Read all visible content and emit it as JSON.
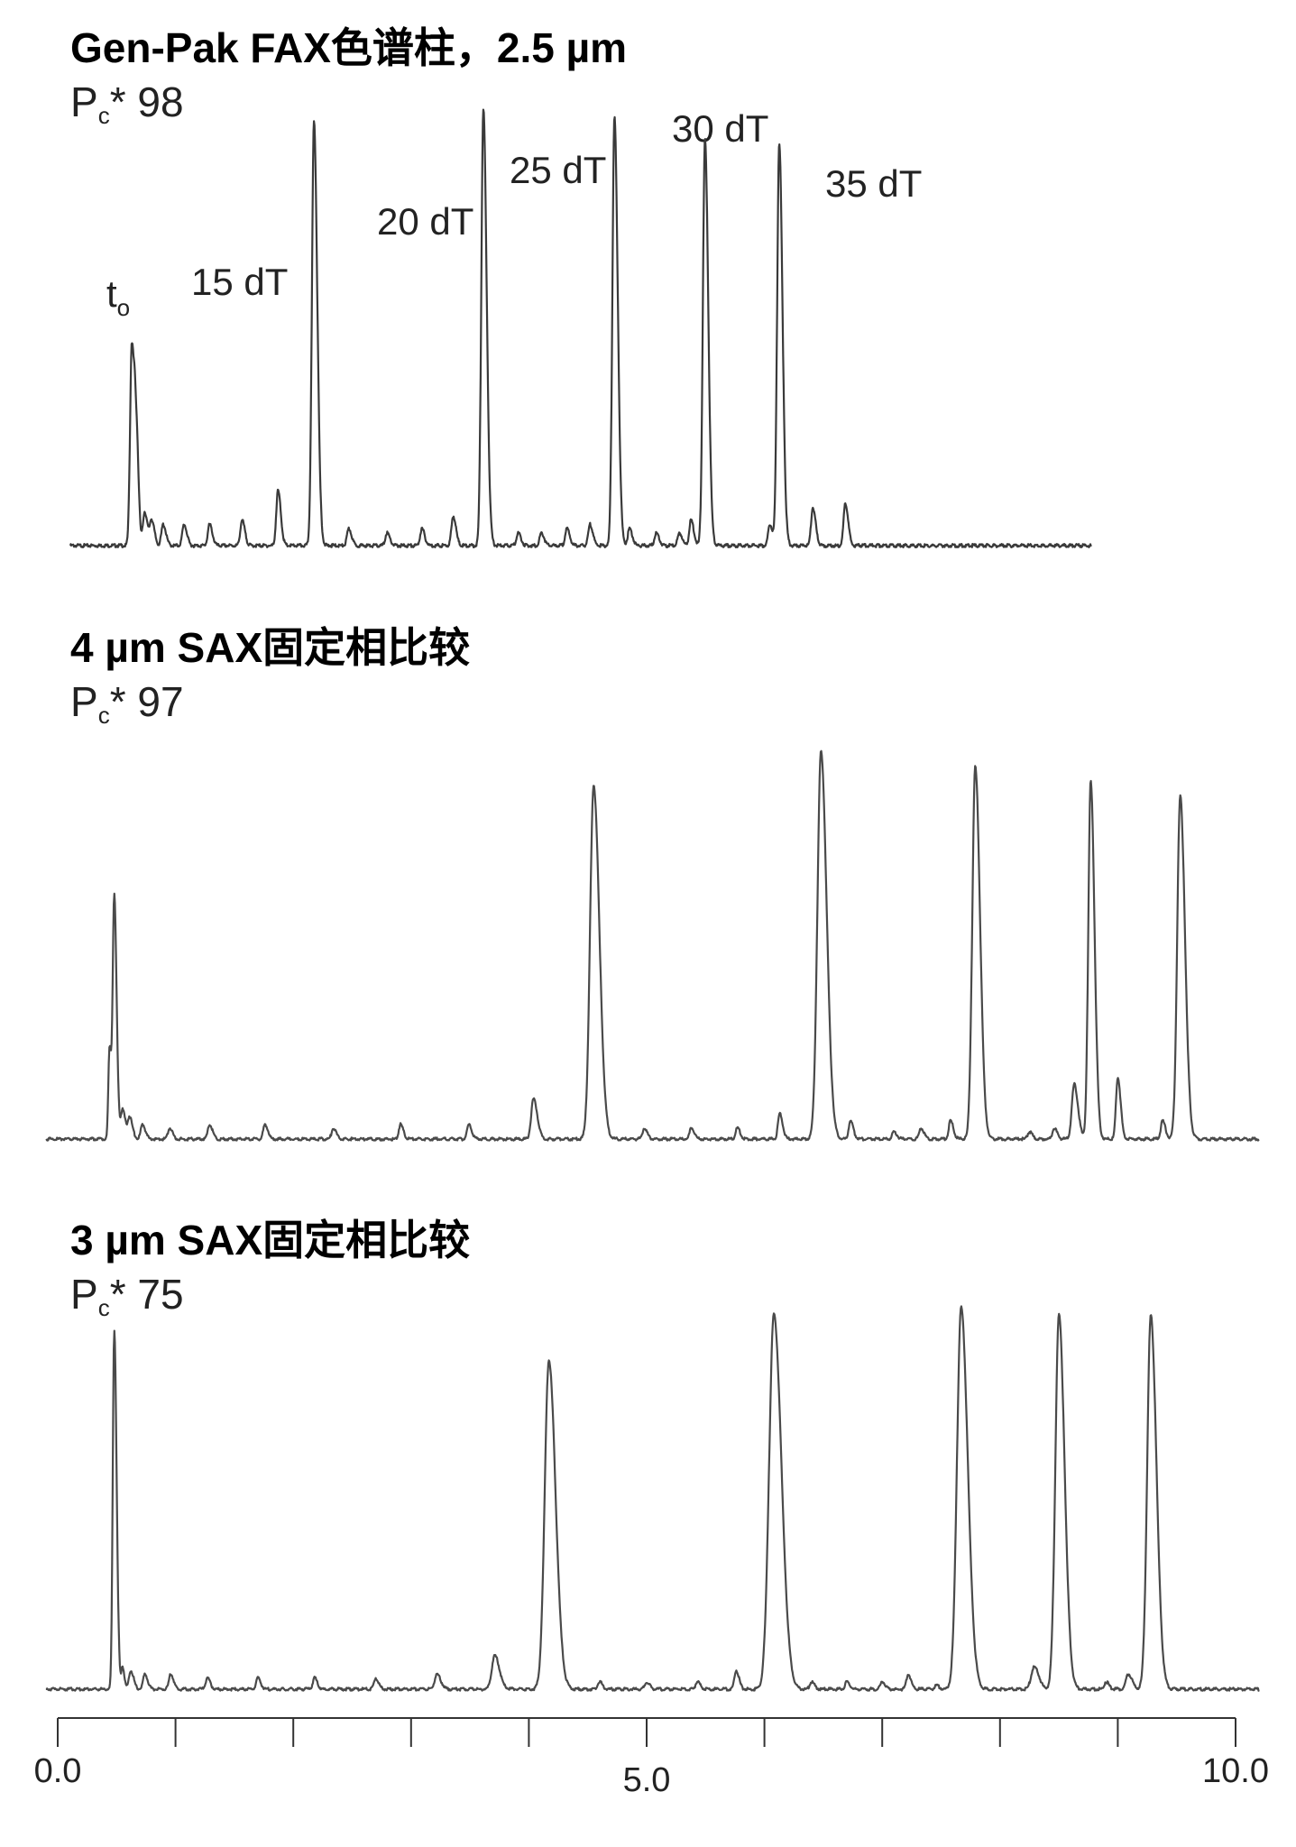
{
  "chart_data": [
    {
      "type": "line",
      "title": "Gen-Pak FAX色谱柱，2.5 µm",
      "pc_prefix": "P",
      "pc_sub": "c",
      "pc_value": "* 98",
      "labels": [
        {
          "text": "t",
          "sub": "o",
          "x": 0.55
        },
        {
          "text": "15 dT",
          "x": 2.15
        },
        {
          "text": "20 dT",
          "x": 3.68
        },
        {
          "text": "25 dT",
          "x": 4.8
        },
        {
          "text": "30 dT",
          "x": 5.63
        },
        {
          "text": "35 dT",
          "x": 6.3
        }
      ],
      "xlim": [
        0,
        8.8
      ],
      "peaks": [
        [
          0.53,
          0.48,
          0.03
        ],
        [
          0.56,
          0.15,
          0.02
        ],
        [
          0.58,
          0.12,
          0.02
        ],
        [
          0.64,
          0.08,
          0.03
        ],
        [
          0.7,
          0.06,
          0.03
        ],
        [
          0.8,
          0.05,
          0.03
        ],
        [
          0.98,
          0.05,
          0.03
        ],
        [
          1.2,
          0.05,
          0.03
        ],
        [
          1.48,
          0.06,
          0.03
        ],
        [
          1.79,
          0.13,
          0.03
        ],
        [
          2.1,
          1.0,
          0.035
        ],
        [
          2.4,
          0.04,
          0.03
        ],
        [
          2.73,
          0.03,
          0.03
        ],
        [
          3.03,
          0.04,
          0.03
        ],
        [
          3.3,
          0.07,
          0.03
        ],
        [
          3.56,
          1.03,
          0.035
        ],
        [
          3.86,
          0.03,
          0.03
        ],
        [
          4.06,
          0.03,
          0.03
        ],
        [
          4.28,
          0.04,
          0.03
        ],
        [
          4.48,
          0.05,
          0.03
        ],
        [
          4.69,
          1.01,
          0.035
        ],
        [
          4.82,
          0.04,
          0.03
        ],
        [
          5.05,
          0.03,
          0.03
        ],
        [
          5.25,
          0.03,
          0.03
        ],
        [
          5.35,
          0.06,
          0.03
        ],
        [
          5.47,
          0.96,
          0.035
        ],
        [
          6.03,
          0.05,
          0.03
        ],
        [
          6.11,
          0.95,
          0.035
        ],
        [
          6.4,
          0.09,
          0.03
        ],
        [
          6.68,
          0.1,
          0.03
        ]
      ]
    },
    {
      "type": "line",
      "title": "4 µm SAX固定相比较",
      "pc_prefix": "P",
      "pc_sub": "c",
      "pc_value": "* 97",
      "xlim": [
        0,
        10
      ],
      "peaks": [
        [
          0.44,
          0.25,
          0.02
        ],
        [
          0.48,
          0.66,
          0.025
        ],
        [
          0.55,
          0.08,
          0.03
        ],
        [
          0.61,
          0.06,
          0.03
        ],
        [
          0.72,
          0.04,
          0.03
        ],
        [
          0.95,
          0.03,
          0.03
        ],
        [
          1.29,
          0.04,
          0.03
        ],
        [
          1.76,
          0.04,
          0.03
        ],
        [
          2.34,
          0.03,
          0.03
        ],
        [
          2.91,
          0.04,
          0.03
        ],
        [
          3.49,
          0.04,
          0.03
        ],
        [
          4.04,
          0.11,
          0.04
        ],
        [
          4.55,
          0.97,
          0.06
        ],
        [
          4.98,
          0.03,
          0.03
        ],
        [
          5.38,
          0.03,
          0.03
        ],
        [
          5.77,
          0.03,
          0.03
        ],
        [
          6.13,
          0.07,
          0.03
        ],
        [
          6.48,
          1.06,
          0.06
        ],
        [
          6.73,
          0.05,
          0.03
        ],
        [
          7.1,
          0.02,
          0.03
        ],
        [
          7.33,
          0.03,
          0.03
        ],
        [
          7.58,
          0.05,
          0.03
        ],
        [
          7.79,
          1.02,
          0.05
        ],
        [
          8.25,
          0.02,
          0.03
        ],
        [
          8.46,
          0.03,
          0.03
        ],
        [
          8.63,
          0.15,
          0.04
        ],
        [
          8.77,
          0.98,
          0.04
        ],
        [
          9.0,
          0.17,
          0.03
        ],
        [
          9.38,
          0.05,
          0.03
        ],
        [
          9.53,
          0.94,
          0.05
        ]
      ]
    },
    {
      "type": "line",
      "title": "3 µm SAX固定相比较",
      "pc_prefix": "P",
      "pc_sub": "c",
      "pc_value": "* 75",
      "xlim": [
        0,
        10
      ],
      "xticks": [
        0,
        1,
        2,
        3,
        4,
        5,
        6,
        7,
        8,
        9,
        10
      ],
      "xtick_labels": [
        {
          "v": 0,
          "text": "0.0"
        },
        {
          "v": 5,
          "text": "5.0"
        },
        {
          "v": 10,
          "text": "10.0"
        }
      ],
      "peaks": [
        [
          0.48,
          0.96,
          0.025
        ],
        [
          0.55,
          0.06,
          0.02
        ],
        [
          0.62,
          0.05,
          0.03
        ],
        [
          0.74,
          0.04,
          0.03
        ],
        [
          0.96,
          0.04,
          0.03
        ],
        [
          1.27,
          0.03,
          0.03
        ],
        [
          1.7,
          0.03,
          0.03
        ],
        [
          2.18,
          0.03,
          0.03
        ],
        [
          2.7,
          0.03,
          0.03
        ],
        [
          3.22,
          0.04,
          0.04
        ],
        [
          3.71,
          0.09,
          0.05
        ],
        [
          4.17,
          0.88,
          0.07
        ],
        [
          4.6,
          0.02,
          0.03
        ],
        [
          5.0,
          0.02,
          0.03
        ],
        [
          5.43,
          0.02,
          0.03
        ],
        [
          5.76,
          0.05,
          0.03
        ],
        [
          6.08,
          1.0,
          0.08
        ],
        [
          6.4,
          0.02,
          0.03
        ],
        [
          6.7,
          0.02,
          0.03
        ],
        [
          7.0,
          0.02,
          0.03
        ],
        [
          7.22,
          0.04,
          0.03
        ],
        [
          7.46,
          0.01,
          0.03
        ],
        [
          7.67,
          1.02,
          0.07
        ],
        [
          8.29,
          0.06,
          0.05
        ],
        [
          8.5,
          1.0,
          0.06
        ],
        [
          8.9,
          0.02,
          0.03
        ],
        [
          9.09,
          0.04,
          0.04
        ],
        [
          9.28,
          1.0,
          0.06
        ]
      ]
    }
  ]
}
